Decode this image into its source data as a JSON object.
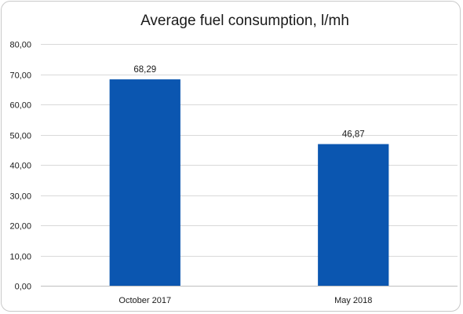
{
  "chart_data": {
    "type": "bar",
    "title": "Average fuel consumption, l/mh",
    "categories": [
      "October 2017",
      "May 2018"
    ],
    "values": [
      68.29,
      46.87
    ],
    "data_labels": [
      "68,29",
      "46,87"
    ],
    "ylim": [
      0,
      80
    ],
    "yticks": [
      0,
      10,
      20,
      30,
      40,
      50,
      60,
      70,
      80
    ],
    "ytick_labels": [
      "0,00",
      "10,00",
      "20,00",
      "30,00",
      "40,00",
      "50,00",
      "60,00",
      "70,00",
      "80,00"
    ],
    "xlabel": "",
    "ylabel": "",
    "grid": true,
    "legend": "none",
    "bar_color": "#0b56b0"
  }
}
